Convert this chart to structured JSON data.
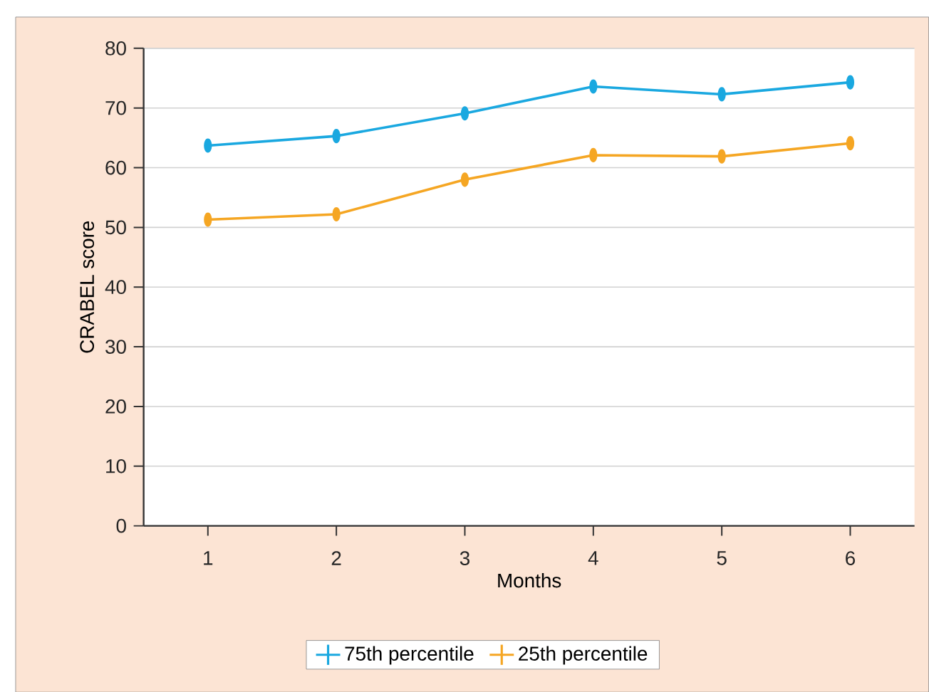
{
  "chart_data": {
    "type": "line",
    "xlabel": "Months",
    "ylabel": "CRABEL score",
    "x": [
      1,
      2,
      3,
      4,
      5,
      6
    ],
    "series": [
      {
        "name": "75th percentile",
        "color": "#1aa8e0",
        "values": [
          63.7,
          65.3,
          69.1,
          73.6,
          72.3,
          74.3
        ]
      },
      {
        "name": "25th percentile",
        "color": "#f5a623",
        "values": [
          51.3,
          52.2,
          58.0,
          62.1,
          61.9,
          64.1
        ]
      }
    ],
    "xlim": [
      0.5,
      6.5
    ],
    "xticks": [
      1,
      2,
      3,
      4,
      5,
      6
    ],
    "ylim": [
      0,
      80
    ],
    "yticks": [
      0,
      10,
      20,
      30,
      40,
      50,
      60,
      70,
      80
    ],
    "grid": "y",
    "legend": "bottom",
    "marker": "circle",
    "line_style": "solid"
  }
}
